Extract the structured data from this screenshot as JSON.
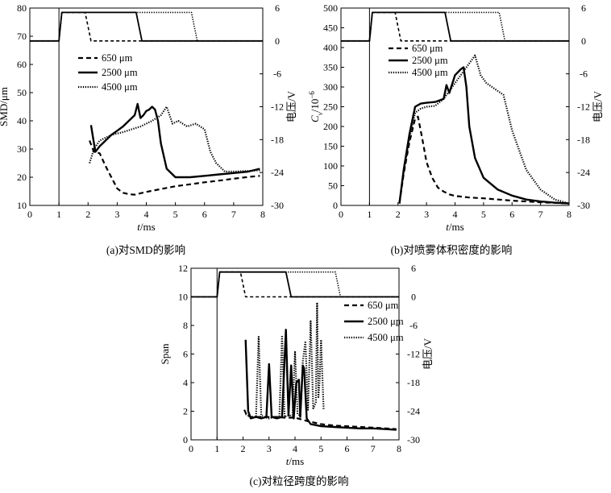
{
  "chart_data": [
    {
      "type": "line",
      "caption": "(a)对SMD的影响",
      "xlabel_var": "t",
      "xlabel_unit": "/ms",
      "ylabel": "SMD/μm",
      "y2label": "电压/V",
      "xlim": [
        0,
        8
      ],
      "ylim": [
        10,
        80
      ],
      "y2lim": [
        -30,
        6
      ],
      "xticks": [
        "0",
        "1",
        "2",
        "3",
        "4",
        "5",
        "6",
        "7",
        "8"
      ],
      "yticks": [
        "10",
        "20",
        "30",
        "40",
        "50",
        "60",
        "70",
        "80"
      ],
      "y2ticks": [
        "-30",
        "-24",
        "-18",
        "-12",
        "-6",
        "0",
        "6"
      ],
      "legend_position": "middle-left",
      "series": [
        {
          "name": "650 μm",
          "style": "dash",
          "x": [
            2.05,
            2.2,
            2.4,
            2.6,
            2.8,
            3.0,
            3.2,
            3.4,
            3.6,
            3.8,
            4.0,
            4.5,
            5.0,
            5.5,
            6.0,
            6.5,
            7.0,
            7.5,
            7.9
          ],
          "y": [
            33,
            29,
            28.5,
            24,
            20,
            16,
            14.5,
            14,
            13.8,
            14.3,
            14.8,
            15.8,
            16.8,
            17.5,
            18.2,
            18.8,
            19.5,
            20.1,
            20.5
          ]
        },
        {
          "name": "2500 μm",
          "style": "solid",
          "x": [
            2.1,
            2.25,
            2.4,
            2.6,
            2.8,
            3.0,
            3.2,
            3.4,
            3.6,
            3.7,
            3.8,
            3.9,
            4.0,
            4.1,
            4.2,
            4.3,
            4.4,
            4.5,
            4.7,
            5.0,
            5.5,
            6.0,
            6.5,
            7.0,
            7.5,
            7.9
          ],
          "y": [
            38.5,
            29,
            31,
            33,
            35,
            36.5,
            38,
            40,
            42,
            46,
            41,
            42,
            43.5,
            44,
            45,
            44,
            40,
            32,
            23,
            20,
            20,
            20.5,
            21,
            21.5,
            22,
            23
          ]
        },
        {
          "name": "4500 μm",
          "style": "dot",
          "x": [
            2.05,
            2.2,
            2.4,
            2.6,
            2.8,
            3.0,
            3.2,
            3.5,
            3.8,
            4.0,
            4.2,
            4.5,
            4.7,
            4.9,
            5.1,
            5.4,
            5.7,
            6.0,
            6.2,
            6.4,
            6.7,
            7.0,
            7.5,
            7.9
          ],
          "y": [
            25,
            30,
            33,
            34,
            35,
            35.5,
            36,
            37,
            38,
            39,
            40,
            42,
            45,
            39,
            40,
            38,
            39,
            37,
            29,
            25,
            22,
            22,
            22.2,
            22.5
          ]
        },
        {
          "name": "",
          "role": "voltage-650",
          "axis": "y2",
          "style": "dash",
          "x": [
            0,
            1.0,
            1.1,
            1.8,
            1.9,
            2.1,
            8.0
          ],
          "y": [
            0,
            0,
            5.2,
            5.2,
            5.2,
            0,
            0
          ]
        },
        {
          "name": "",
          "role": "voltage-2500",
          "axis": "y2",
          "style": "solid",
          "x": [
            0,
            1.0,
            1.1,
            3.65,
            3.85,
            8.0
          ],
          "y": [
            0,
            0,
            5.2,
            5.2,
            0,
            0
          ]
        },
        {
          "name": "",
          "role": "voltage-4500",
          "axis": "y2",
          "style": "dot",
          "x": [
            0,
            1.0,
            1.1,
            5.55,
            5.75,
            8.0
          ],
          "y": [
            0,
            0,
            5.2,
            5.2,
            0,
            0
          ]
        }
      ]
    },
    {
      "type": "line",
      "caption": "(b)对喷雾体积密度的影响",
      "xlabel_var": "t",
      "xlabel_unit": "/ms",
      "ylabel_var": "C",
      "ylabel_sub": "v",
      "ylabel_unit": "/10",
      "ylabel_exp": "−6",
      "y2label": "电压/V",
      "xlim": [
        0,
        8
      ],
      "ylim": [
        0,
        500
      ],
      "y2lim": [
        -30,
        6
      ],
      "xticks": [
        "0",
        "1",
        "2",
        "3",
        "4",
        "5",
        "6",
        "7",
        "8"
      ],
      "yticks": [
        "0",
        "50",
        "100",
        "150",
        "200",
        "250",
        "300",
        "350",
        "400",
        "450",
        "500"
      ],
      "y2ticks": [
        "-30",
        "-24",
        "-18",
        "-12",
        "-6",
        "0",
        "6"
      ],
      "legend_position": "upper-left",
      "series": [
        {
          "name": "650 μm",
          "style": "dash",
          "x": [
            2.05,
            2.2,
            2.4,
            2.6,
            2.7,
            2.85,
            3.0,
            3.2,
            3.4,
            3.6,
            3.8,
            4.0,
            4.5,
            5.0,
            6.0,
            7.0,
            8.0
          ],
          "y": [
            5,
            80,
            160,
            220,
            225,
            170,
            110,
            70,
            45,
            35,
            28,
            24,
            20,
            18,
            12,
            8,
            5
          ]
        },
        {
          "name": "2500 μm",
          "style": "solid",
          "x": [
            2.05,
            2.2,
            2.4,
            2.6,
            2.8,
            3.0,
            3.3,
            3.6,
            3.7,
            3.8,
            4.0,
            4.2,
            4.3,
            4.4,
            4.5,
            4.7,
            5.0,
            5.5,
            6.0,
            6.5,
            7.0,
            7.5,
            8.0
          ],
          "y": [
            5,
            90,
            180,
            250,
            258,
            260,
            262,
            270,
            305,
            285,
            330,
            345,
            350,
            300,
            200,
            120,
            70,
            40,
            25,
            15,
            10,
            7,
            5
          ]
        },
        {
          "name": "4500 μm",
          "style": "dot",
          "x": [
            2.05,
            2.2,
            2.4,
            2.6,
            2.8,
            3.0,
            3.3,
            3.6,
            3.9,
            4.2,
            4.5,
            4.7,
            4.9,
            5.1,
            5.4,
            5.7,
            6.0,
            6.2,
            6.5,
            7.0,
            7.5,
            8.0
          ],
          "y": [
            5,
            85,
            170,
            235,
            245,
            250,
            252,
            270,
            300,
            330,
            360,
            380,
            330,
            310,
            295,
            280,
            190,
            150,
            90,
            40,
            15,
            5
          ]
        },
        {
          "name": "",
          "role": "voltage-650",
          "axis": "y2",
          "style": "dash",
          "x": [
            0,
            1.0,
            1.1,
            1.8,
            1.9,
            2.1,
            8.0
          ],
          "y": [
            0,
            0,
            5.2,
            5.2,
            5.2,
            0,
            0
          ]
        },
        {
          "name": "",
          "role": "voltage-2500",
          "axis": "y2",
          "style": "solid",
          "x": [
            0,
            1.0,
            1.1,
            3.65,
            3.85,
            8.0
          ],
          "y": [
            0,
            0,
            5.2,
            5.2,
            0,
            0
          ]
        },
        {
          "name": "",
          "role": "voltage-4500",
          "axis": "y2",
          "style": "dot",
          "x": [
            0,
            1.0,
            1.1,
            5.55,
            5.75,
            8.0
          ],
          "y": [
            0,
            0,
            5.2,
            5.2,
            0,
            0
          ]
        }
      ]
    },
    {
      "type": "line",
      "caption": "(c)对粒径跨度的影响",
      "xlabel_var": "t",
      "xlabel_unit": "/ms",
      "ylabel": "Span",
      "y2label": "电压/V",
      "xlim": [
        0,
        8
      ],
      "ylim": [
        0,
        12
      ],
      "y2lim": [
        -30,
        6
      ],
      "xticks": [
        "0",
        "1",
        "2",
        "3",
        "4",
        "5",
        "6",
        "7",
        "8"
      ],
      "yticks": [
        "0",
        "2",
        "4",
        "6",
        "8",
        "10",
        "12"
      ],
      "y2ticks": [
        "-30",
        "-24",
        "-18",
        "-12",
        "-6",
        "0",
        "6"
      ],
      "legend_position": "right",
      "series": [
        {
          "name": "650 μm",
          "style": "dash",
          "x": [
            2.05,
            2.15,
            2.3,
            2.5,
            2.8,
            3.0,
            3.3,
            3.6,
            4.0,
            4.5,
            5.0,
            5.5,
            6.0,
            6.5,
            7.0,
            7.5,
            7.9
          ],
          "y": [
            2.1,
            1.7,
            1.6,
            1.6,
            1.6,
            1.6,
            1.6,
            1.55,
            1.55,
            1.3,
            1.1,
            1.0,
            0.95,
            0.9,
            0.85,
            0.8,
            0.75
          ]
        },
        {
          "name": "2500 μm",
          "style": "solid",
          "x": [
            2.1,
            2.2,
            2.3,
            2.5,
            2.7,
            2.9,
            3.0,
            3.1,
            3.3,
            3.5,
            3.65,
            3.75,
            3.85,
            3.95,
            4.05,
            4.15,
            4.2,
            4.3,
            4.35,
            4.45,
            4.6,
            5.0,
            5.5,
            6.0,
            6.5,
            7.0,
            7.5,
            7.9
          ],
          "y": [
            7,
            2,
            1.5,
            1.6,
            1.5,
            1.6,
            5.3,
            1.6,
            1.5,
            1.6,
            7.7,
            1.7,
            5.2,
            1.5,
            4.0,
            4.2,
            1.6,
            5.2,
            5.0,
            1.5,
            1.1,
            0.95,
            0.9,
            0.85,
            0.8,
            0.8,
            0.75,
            0.7
          ]
        },
        {
          "name": "4500 μm",
          "style": "dot",
          "x": [
            2.1,
            2.3,
            2.5,
            2.6,
            2.7,
            2.8,
            3.0,
            3.2,
            3.4,
            3.5,
            3.6,
            3.7,
            3.8,
            3.9,
            4.0,
            4.1,
            4.2,
            4.3,
            4.4,
            4.5,
            4.6,
            4.7,
            4.8,
            4.85,
            4.9,
            4.95,
            5.0,
            5.1
          ],
          "y": [
            1.8,
            1.6,
            1.6,
            7.2,
            1.7,
            1.6,
            1.5,
            1.6,
            1.6,
            7.3,
            1.6,
            1.7,
            1.7,
            1.6,
            6.2,
            1.8,
            1.7,
            5.5,
            6.9,
            2.1,
            8.3,
            2.2,
            2.6,
            9.6,
            3.0,
            4.2,
            7.0,
            2.1
          ]
        },
        {
          "name": "",
          "role": "voltage-650",
          "axis": "y2",
          "style": "dash",
          "x": [
            0,
            1.0,
            1.1,
            1.8,
            1.9,
            2.1,
            8.0
          ],
          "y": [
            0,
            0,
            5.2,
            5.2,
            5.2,
            0,
            0
          ]
        },
        {
          "name": "",
          "role": "voltage-2500",
          "axis": "y2",
          "style": "solid",
          "x": [
            0,
            1.0,
            1.1,
            3.65,
            3.85,
            8.0
          ],
          "y": [
            0,
            0,
            5.2,
            5.2,
            0,
            0
          ]
        },
        {
          "name": "",
          "role": "voltage-4500",
          "axis": "y2",
          "style": "dot",
          "x": [
            0,
            1.0,
            1.1,
            5.55,
            5.75,
            8.0
          ],
          "y": [
            0,
            0,
            5.2,
            5.2,
            0,
            0
          ]
        }
      ]
    }
  ]
}
